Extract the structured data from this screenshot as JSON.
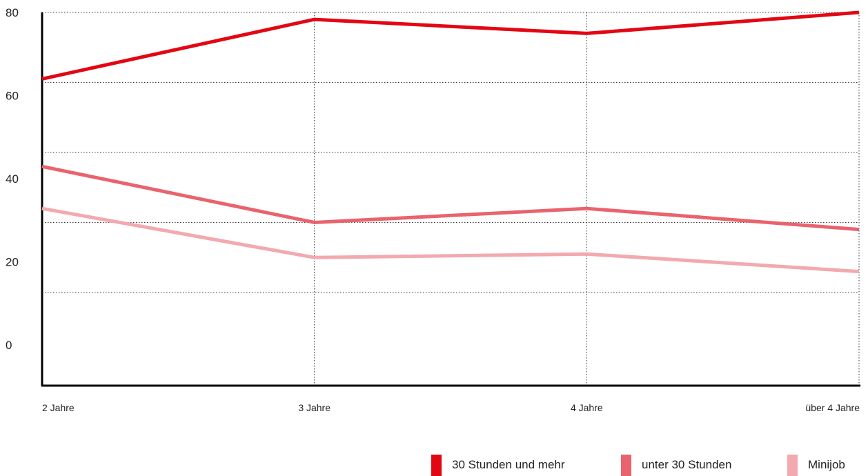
{
  "chart_data": {
    "type": "line",
    "categories": [
      "2 Jahre",
      "3 Jahre",
      "4 Jahre",
      "über 4 Jahre"
    ],
    "series": [
      {
        "name": "30 Stunden und mehr",
        "values": [
          61,
          78,
          74,
          80
        ],
        "color": "#e30613"
      },
      {
        "name": "unter 30 Stunden",
        "values": [
          36,
          20,
          24,
          18
        ],
        "color": "#e9636d"
      },
      {
        "name": "Minijob",
        "values": [
          24,
          10,
          11,
          6
        ],
        "color": "#f2a9af"
      }
    ],
    "yticks": [
      80,
      60,
      40,
      20,
      0
    ],
    "ylim": [
      0,
      80
    ],
    "grid": true,
    "legend_position": "bottom-right",
    "title": "",
    "xlabel": "",
    "ylabel": ""
  }
}
